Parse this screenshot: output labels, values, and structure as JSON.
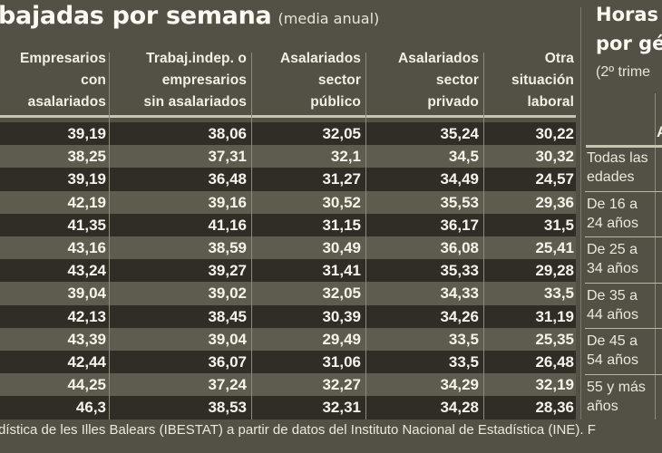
{
  "title": {
    "main": "bajadas por semana",
    "sub": "(media anual)"
  },
  "table": {
    "columns": [
      [
        "Empresarios",
        "con",
        "asalariados"
      ],
      [
        "Trabaj.indep. o",
        "empresarios",
        "sin asalariados"
      ],
      [
        "Asalariados",
        "sector",
        "público"
      ],
      [
        "Asalariados",
        "sector",
        "privado"
      ],
      [
        "Otra",
        "situación",
        "laboral"
      ]
    ],
    "rows": [
      [
        "39,19",
        "38,06",
        "32,05",
        "35,24",
        "30,22"
      ],
      [
        "38,25",
        "37,31",
        "32,1",
        "34,5",
        "30,32"
      ],
      [
        "39,19",
        "36,48",
        "31,27",
        "34,49",
        "24,57"
      ],
      [
        "42,19",
        "39,16",
        "30,52",
        "35,53",
        "29,36"
      ],
      [
        "41,35",
        "41,16",
        "31,15",
        "36,17",
        "31,5"
      ],
      [
        "43,16",
        "38,59",
        "30,49",
        "36,08",
        "25,41"
      ],
      [
        "43,24",
        "39,27",
        "31,41",
        "35,33",
        "29,28"
      ],
      [
        "39,04",
        "39,02",
        "32,05",
        "34,33",
        "33,5"
      ],
      [
        "42,13",
        "38,45",
        "30,39",
        "34,26",
        "31,19"
      ],
      [
        "43,39",
        "39,04",
        "29,49",
        "33,5",
        "25,35"
      ],
      [
        "42,44",
        "36,07",
        "31,06",
        "33,5",
        "26,48"
      ],
      [
        "44,25",
        "37,24",
        "32,27",
        "34,29",
        "32,19"
      ],
      [
        "46,3",
        "38,53",
        "32,31",
        "34,28",
        "28,36"
      ]
    ]
  },
  "footer": {
    "source": "dística de les Illes Balears (IBESTAT) a partir de datos del Instituto Nacional de Estadística (INE). F"
  },
  "right_panel": {
    "title_line1": "Horas",
    "title_line2": "por gé",
    "subtitle": "(2º trime",
    "column_head": "A",
    "age_groups": [
      [
        "Todas las",
        "edades"
      ],
      [
        "De 16 a",
        "24 años"
      ],
      [
        "De 25 a",
        "34 años"
      ],
      [
        "De 35 a",
        "44 años"
      ],
      [
        "De 45 a",
        "54 años"
      ],
      [
        "55 y más",
        "años"
      ]
    ]
  }
}
